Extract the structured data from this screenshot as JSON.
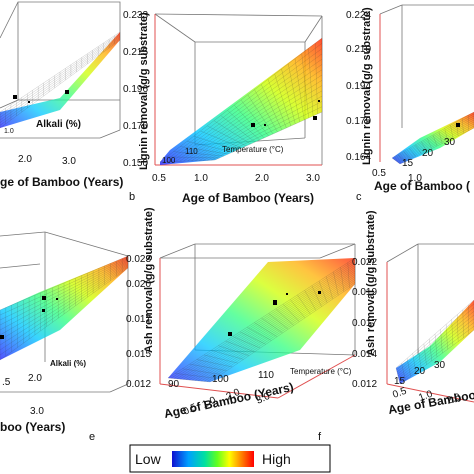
{
  "legend": {
    "low": "Low",
    "high": "High"
  },
  "panel_letters": [
    "b",
    "c",
    "e",
    "f"
  ],
  "chart_data": [
    {
      "type": "surface",
      "panel": "a",
      "zlabel": "",
      "xlabel": "ge of Bamboo (Years)",
      "factor_label": "Alkali (%)",
      "x_ticks": [
        "2.0",
        "3.0"
      ],
      "factor_ticks": [
        "1.0"
      ],
      "z_ticks": []
    },
    {
      "type": "surface",
      "panel": "b",
      "zlabel": "Lignin removal (g/g substrate)",
      "xlabel": "Age of Bamboo (Years)",
      "factor_label": "Temperature (°C)",
      "z_ticks": [
        "0.233",
        "0.215",
        "0.196",
        "0.170",
        "0.150"
      ],
      "zlim": [
        0.15,
        0.233
      ],
      "x_ticks": [
        "0.5",
        "1.0",
        "2.0",
        "3.0"
      ],
      "factor_ticks": [
        "100",
        "110"
      ]
    },
    {
      "type": "surface",
      "panel": "c",
      "zlabel": "Lignin removal (g/g substrate)",
      "xlabel": "Age of Bamboo (",
      "factor_label": "",
      "z_ticks": [
        "0.224",
        "0.210",
        "0.194",
        "0.179",
        "0.164"
      ],
      "zlim": [
        0.164,
        0.224
      ],
      "x_ticks": [
        "0.5",
        "1.0"
      ],
      "factor_ticks": [
        "15",
        "20",
        "30"
      ]
    },
    {
      "type": "surface",
      "panel": "d",
      "zlabel": "",
      "xlabel": "boo (Years)",
      "factor_label": "Alkali (%)",
      "x_ticks": [
        ".5",
        "2.0",
        "3.0"
      ],
      "factor_ticks": []
    },
    {
      "type": "surface",
      "panel": "e",
      "zlabel": "Ash removal (g/g substrate)",
      "xlabel": "Age of Bamboo (Years)",
      "factor_label": "Temperature (°C)",
      "z_ticks": [
        "0.023",
        "0.020",
        "0.017",
        "0.015",
        "0.012"
      ],
      "zlim": [
        0.012,
        0.023
      ],
      "x_ticks": [
        "0.5",
        "1.0",
        "2.0",
        "3.0"
      ],
      "factor_ticks": [
        "90",
        "100",
        "110"
      ]
    },
    {
      "type": "surface",
      "panel": "f",
      "zlabel": "Ash removal (g/g substrate)",
      "xlabel": "Age of Bamboo (Years)",
      "factor_label": "",
      "z_ticks": [
        "0.022",
        "0.019",
        "0.017",
        "0.014",
        "0.012"
      ],
      "zlim": [
        0.012,
        0.022
      ],
      "x_ticks": [
        "0.5",
        "1.0",
        "2.0"
      ],
      "factor_ticks": [
        "15",
        "20",
        "30"
      ]
    }
  ]
}
